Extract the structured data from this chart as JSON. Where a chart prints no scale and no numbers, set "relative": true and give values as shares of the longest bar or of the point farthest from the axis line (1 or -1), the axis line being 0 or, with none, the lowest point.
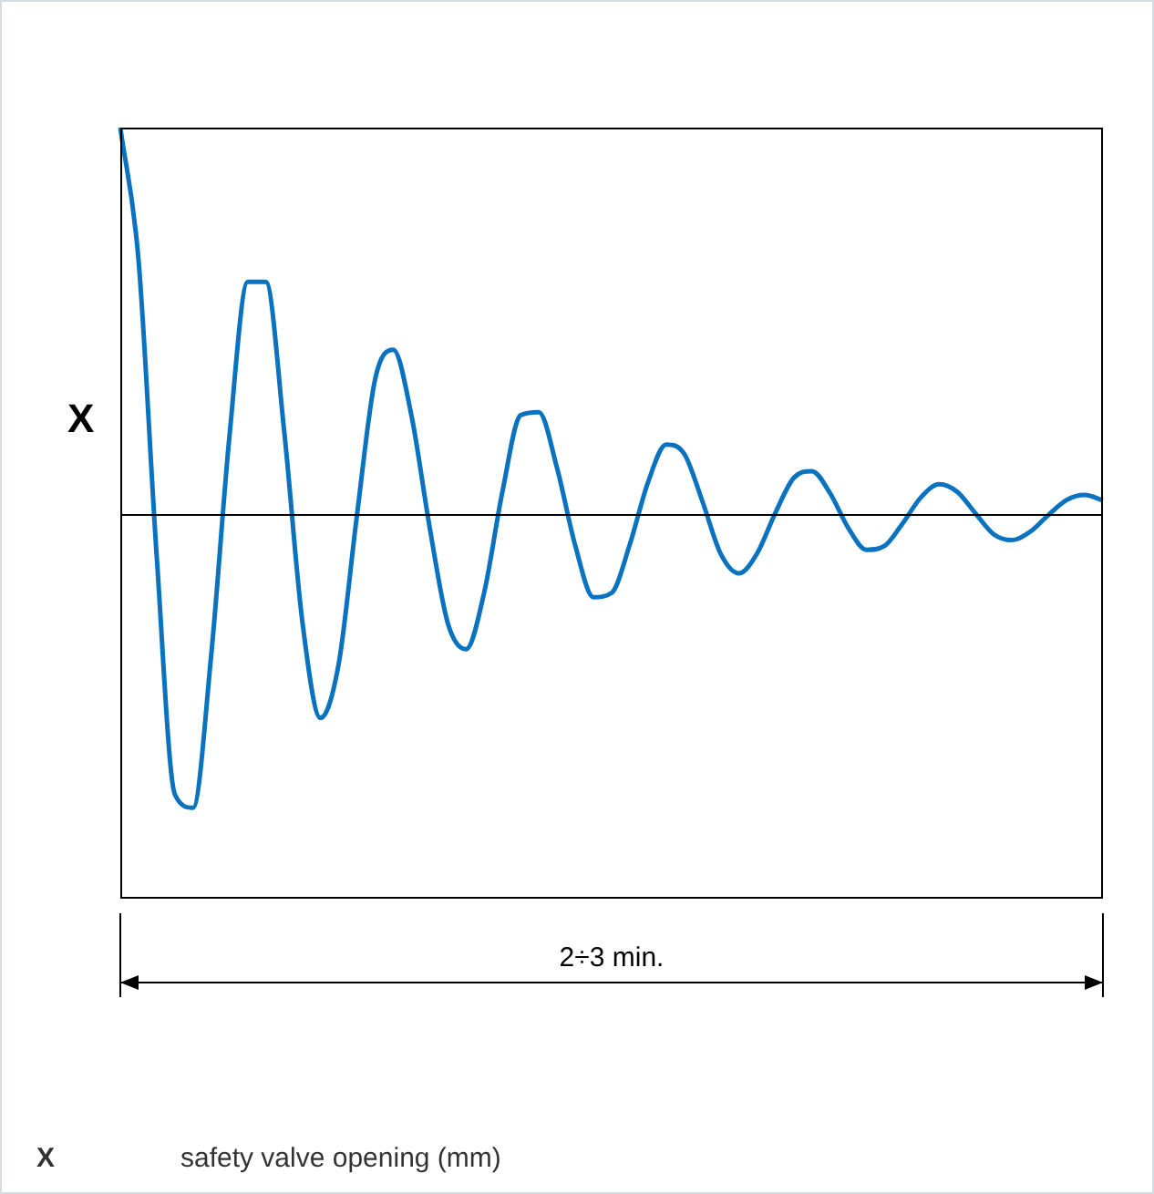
{
  "chart_data": {
    "type": "line",
    "relative": true,
    "ylabel": "X",
    "xlabel": "2÷3 min.",
    "color": "#0a72bf",
    "categories": [
      null,
      null,
      null,
      null,
      null,
      null,
      null,
      null,
      null,
      null,
      null,
      null,
      null,
      null,
      null,
      null,
      null,
      null,
      null,
      null,
      null,
      null,
      null,
      null,
      null,
      null,
      null,
      null,
      null,
      null,
      null,
      null,
      null,
      null,
      null,
      null,
      null,
      null,
      null,
      null,
      null,
      null,
      null,
      null,
      null,
      null,
      null,
      null,
      null,
      null,
      null,
      null,
      null,
      null,
      null
    ],
    "values": [
      1.0,
      0.657,
      -0.112,
      -0.73,
      -0.764,
      -0.365,
      0.201,
      0.6,
      0.6,
      0.215,
      -0.28,
      -0.531,
      -0.391,
      -0.007,
      0.347,
      0.424,
      0.253,
      -0.037,
      -0.286,
      -0.353,
      -0.205,
      0.056,
      0.254,
      0.262,
      0.117,
      -0.084,
      -0.218,
      -0.207,
      -0.081,
      0.08,
      0.178,
      0.153,
      0.029,
      -0.106,
      -0.156,
      -0.104,
      0.001,
      0.091,
      0.109,
      0.052,
      -0.038,
      -0.095,
      -0.085,
      -0.026,
      0.041,
      0.075,
      0.055,
      -0.001,
      -0.055,
      -0.07,
      -0.048,
      -0.005,
      0.034,
      0.047,
      0.033
    ],
    "annotations": [
      "X",
      "safety valve opening (mm)"
    ]
  }
}
